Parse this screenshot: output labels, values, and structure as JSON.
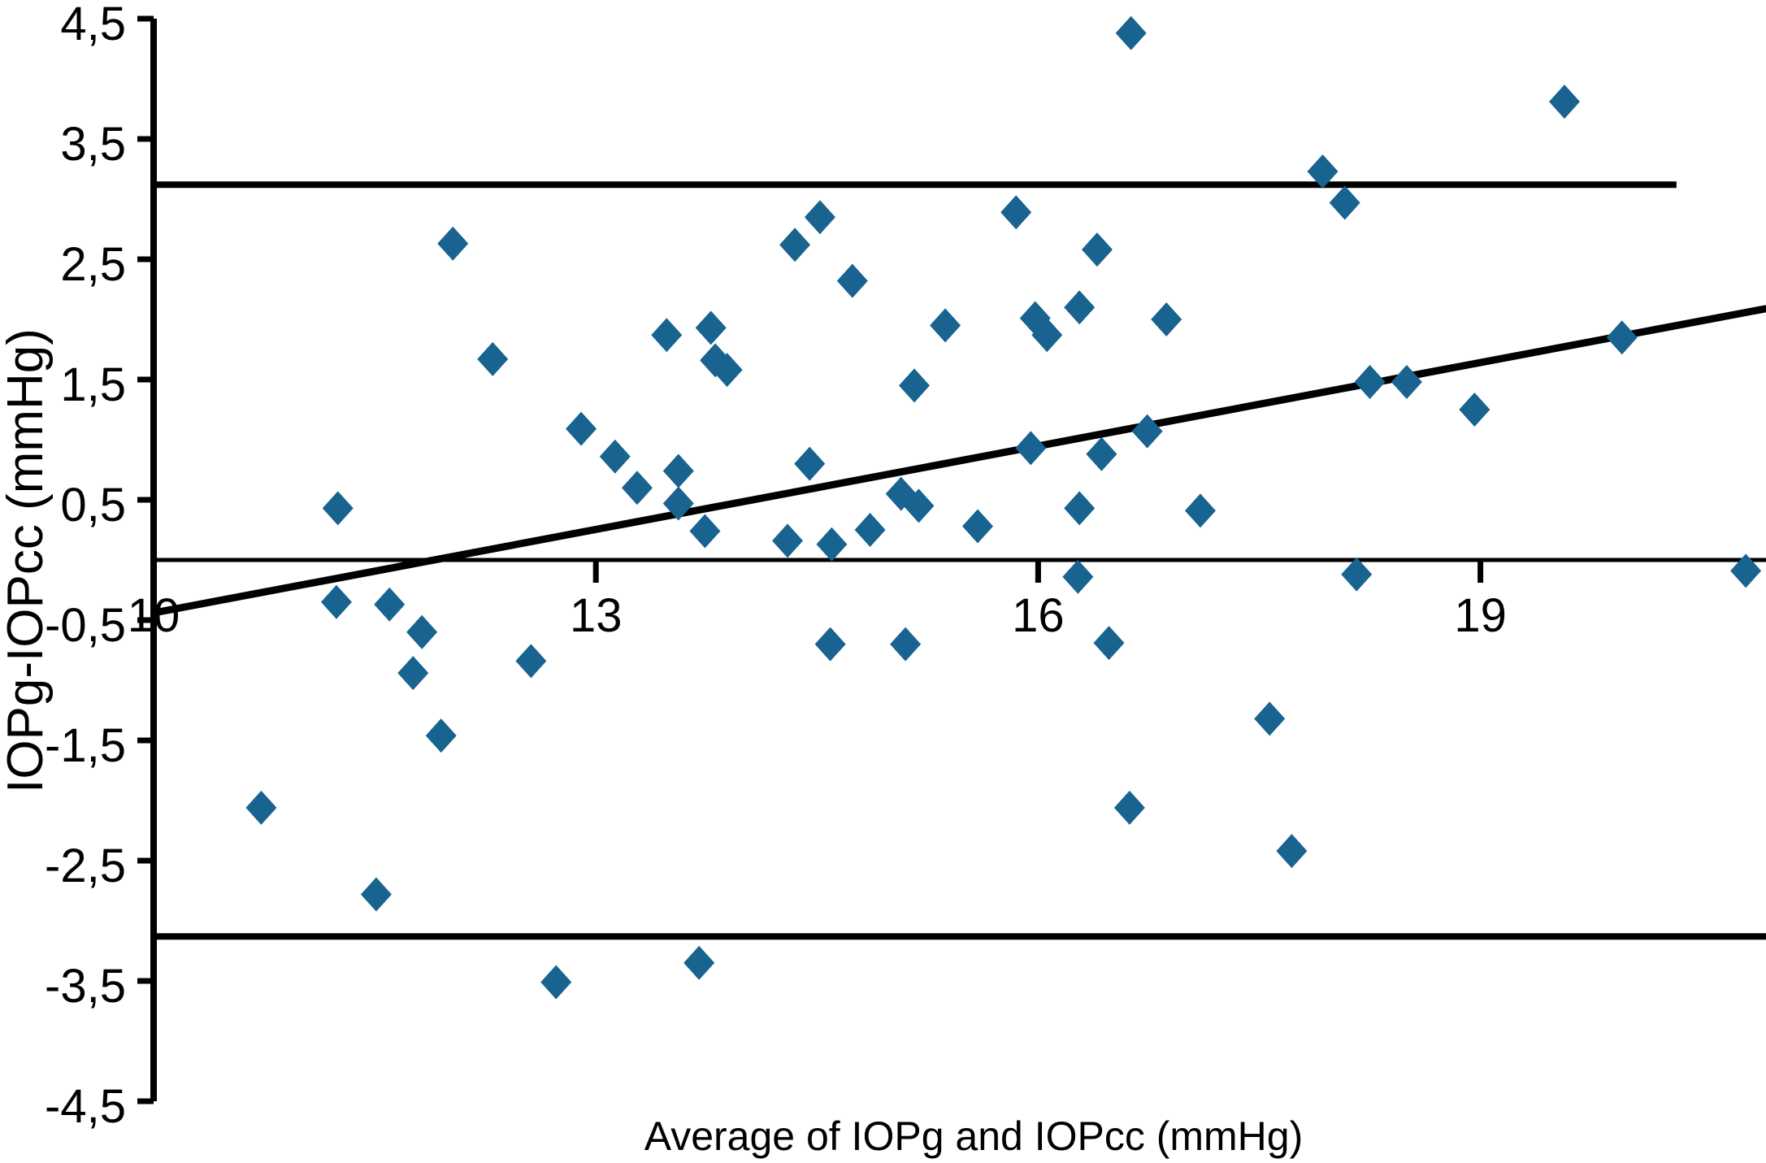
{
  "chart_data": {
    "type": "scatter",
    "title": "",
    "xlabel": "Average of IOPg and IOPcc (mmHg)",
    "ylabel": "IOPg-IOPcc (mmHg)",
    "xlim": [
      10,
      20.94
    ],
    "ylim": [
      -4.5,
      4.5
    ],
    "grid": false,
    "legend": "none",
    "marker": "diamond",
    "marker_color": "#186390",
    "axis_color": "#000000",
    "x_ticks": [
      {
        "label": "10",
        "value": 10,
        "tick": false
      },
      {
        "label": "13",
        "value": 13,
        "tick": true
      },
      {
        "label": "16",
        "value": 16,
        "tick": true
      },
      {
        "label": "19",
        "value": 19,
        "tick": true
      }
    ],
    "y_ticks": [
      {
        "label": "4,5",
        "value": 4.5
      },
      {
        "label": "3,5",
        "value": 3.5
      },
      {
        "label": "2,5",
        "value": 2.5
      },
      {
        "label": "1,5",
        "value": 1.5
      },
      {
        "label": "0,5",
        "value": 0.5
      },
      {
        "label": "-0,5",
        "value": -0.5
      },
      {
        "label": "-1,5",
        "value": -1.5
      },
      {
        "label": "-2,5",
        "value": -2.5
      },
      {
        "label": "-3,5",
        "value": -3.5
      },
      {
        "label": "-4,5",
        "value": -4.5
      }
    ],
    "reference_lines": {
      "upper_limit_of_agreement": {
        "y": 3.12,
        "x1": 10,
        "x2": 20.33
      },
      "zero_line": {
        "y": 0,
        "x1": 10,
        "x2": 20.94
      },
      "lower_limit_of_agreement": {
        "y": -3.13,
        "x1": 10,
        "x2": 20.94
      },
      "regression_trend": {
        "x1": 10,
        "y1": -0.44,
        "x2": 20.94,
        "y2": 2.09
      }
    },
    "points": [
      [
        16.63,
        4.38
      ],
      [
        19.57,
        3.81
      ],
      [
        17.93,
        3.23
      ],
      [
        18.08,
        2.97
      ],
      [
        15.85,
        2.89
      ],
      [
        14.52,
        2.85
      ],
      [
        12.03,
        2.63
      ],
      [
        14.35,
        2.62
      ],
      [
        16.4,
        2.58
      ],
      [
        14.74,
        2.32
      ],
      [
        16.28,
        2.1
      ],
      [
        16.87,
        2.0
      ],
      [
        15.98,
        2.01
      ],
      [
        15.37,
        1.95
      ],
      [
        19.96,
        1.85
      ],
      [
        13.78,
        1.93
      ],
      [
        13.48,
        1.87
      ],
      [
        16.06,
        1.87
      ],
      [
        12.3,
        1.67
      ],
      [
        13.81,
        1.66
      ],
      [
        13.89,
        1.58
      ],
      [
        18.25,
        1.48
      ],
      [
        18.5,
        1.48
      ],
      [
        15.16,
        1.45
      ],
      [
        18.96,
        1.25
      ],
      [
        12.9,
        1.09
      ],
      [
        16.74,
        1.07
      ],
      [
        15.95,
        0.93
      ],
      [
        16.43,
        0.88
      ],
      [
        13.13,
        0.86
      ],
      [
        14.45,
        0.8
      ],
      [
        13.56,
        0.74
      ],
      [
        13.28,
        0.6
      ],
      [
        15.07,
        0.55
      ],
      [
        13.56,
        0.47
      ],
      [
        15.19,
        0.45
      ],
      [
        11.25,
        0.43
      ],
      [
        16.28,
        0.43
      ],
      [
        17.1,
        0.41
      ],
      [
        15.59,
        0.28
      ],
      [
        14.86,
        0.25
      ],
      [
        13.74,
        0.24
      ],
      [
        14.3,
        0.16
      ],
      [
        14.6,
        0.13
      ],
      [
        16.27,
        -0.14
      ],
      [
        18.16,
        -0.12
      ],
      [
        20.8,
        -0.09
      ],
      [
        11.24,
        -0.35
      ],
      [
        11.6,
        -0.37
      ],
      [
        11.82,
        -0.6
      ],
      [
        14.59,
        -0.7
      ],
      [
        15.1,
        -0.7
      ],
      [
        16.48,
        -0.69
      ],
      [
        12.56,
        -0.84
      ],
      [
        11.76,
        -0.94
      ],
      [
        17.57,
        -1.32
      ],
      [
        11.95,
        -1.46
      ],
      [
        10.73,
        -2.06
      ],
      [
        16.62,
        -2.06
      ],
      [
        17.72,
        -2.42
      ],
      [
        11.51,
        -2.78
      ],
      [
        13.7,
        -3.35
      ],
      [
        12.73,
        -3.51
      ]
    ]
  }
}
